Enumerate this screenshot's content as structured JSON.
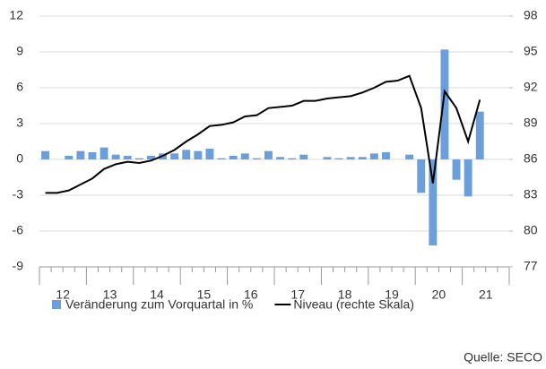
{
  "chart_data": {
    "type": "bar-line",
    "categories": [
      "12",
      null,
      null,
      null,
      "13",
      null,
      null,
      null,
      "14",
      null,
      null,
      null,
      "15",
      null,
      null,
      null,
      "16",
      null,
      null,
      null,
      "17",
      null,
      null,
      null,
      "18",
      null,
      null,
      null,
      "19",
      null,
      null,
      null,
      "20",
      null,
      null,
      null,
      "21",
      null,
      null,
      null
    ],
    "series": [
      {
        "name": "Veränderung zum Vorquartal in %",
        "type": "bar",
        "color": "#6a9fdc",
        "values": [
          0.7,
          0.0,
          0.3,
          0.7,
          0.6,
          1.0,
          0.4,
          0.3,
          0.1,
          0.3,
          0.5,
          0.5,
          0.8,
          0.7,
          0.9,
          0.1,
          0.3,
          0.5,
          0.1,
          0.7,
          0.2,
          0.1,
          0.4,
          0.0,
          0.2,
          0.1,
          0.2,
          0.2,
          0.5,
          0.6,
          0.0,
          0.4,
          -2.8,
          -7.2,
          9.2,
          -1.7,
          -3.1,
          4.0,
          null,
          null
        ]
      },
      {
        "name": "Niveau (rechte Skala)",
        "type": "line",
        "axis": "y2",
        "color": "#000000",
        "values": [
          83.2,
          83.2,
          83.4,
          83.9,
          84.4,
          85.2,
          85.6,
          85.8,
          85.7,
          85.9,
          86.3,
          86.8,
          87.5,
          88.1,
          88.8,
          88.9,
          89.1,
          89.6,
          89.7,
          90.3,
          90.4,
          90.5,
          90.9,
          90.9,
          91.1,
          91.2,
          91.3,
          91.6,
          92.0,
          92.5,
          92.6,
          93.0,
          90.3,
          84.0,
          91.7,
          90.3,
          87.5,
          91.0,
          null,
          null
        ]
      }
    ],
    "ylim": [
      -9,
      12
    ],
    "yticks": [
      -9,
      -6,
      -3,
      0,
      3,
      6,
      9,
      12
    ],
    "y2lim": [
      77,
      98
    ],
    "y2ticks": [
      77,
      80,
      83,
      86,
      89,
      92,
      95,
      98
    ],
    "grid": true,
    "source": "Quelle: SECO"
  }
}
